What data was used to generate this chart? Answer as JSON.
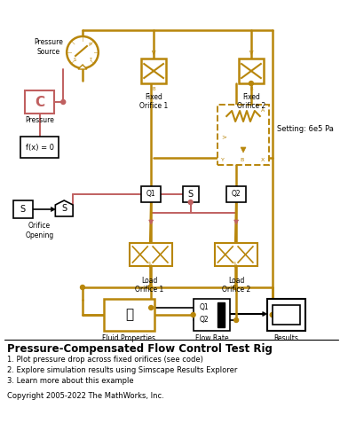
{
  "title": "Pressure-Compensated Flow Control Test Rig",
  "bullet1": "1. Plot pressure drop across fixed orifices (see code)",
  "bullet2": "2. Explore simulation results using Simscape Results Explorer",
  "bullet3": "3. Learn more about this example",
  "copyright": "Copyright 2005-2022 The MathWorks, Inc.",
  "gold_color": "#B8860B",
  "dark_gold": "#8B6914",
  "light_red": "#C06060",
  "bg_color": "#FFFFFF",
  "setting_text": "Setting: 6e5 Pa"
}
